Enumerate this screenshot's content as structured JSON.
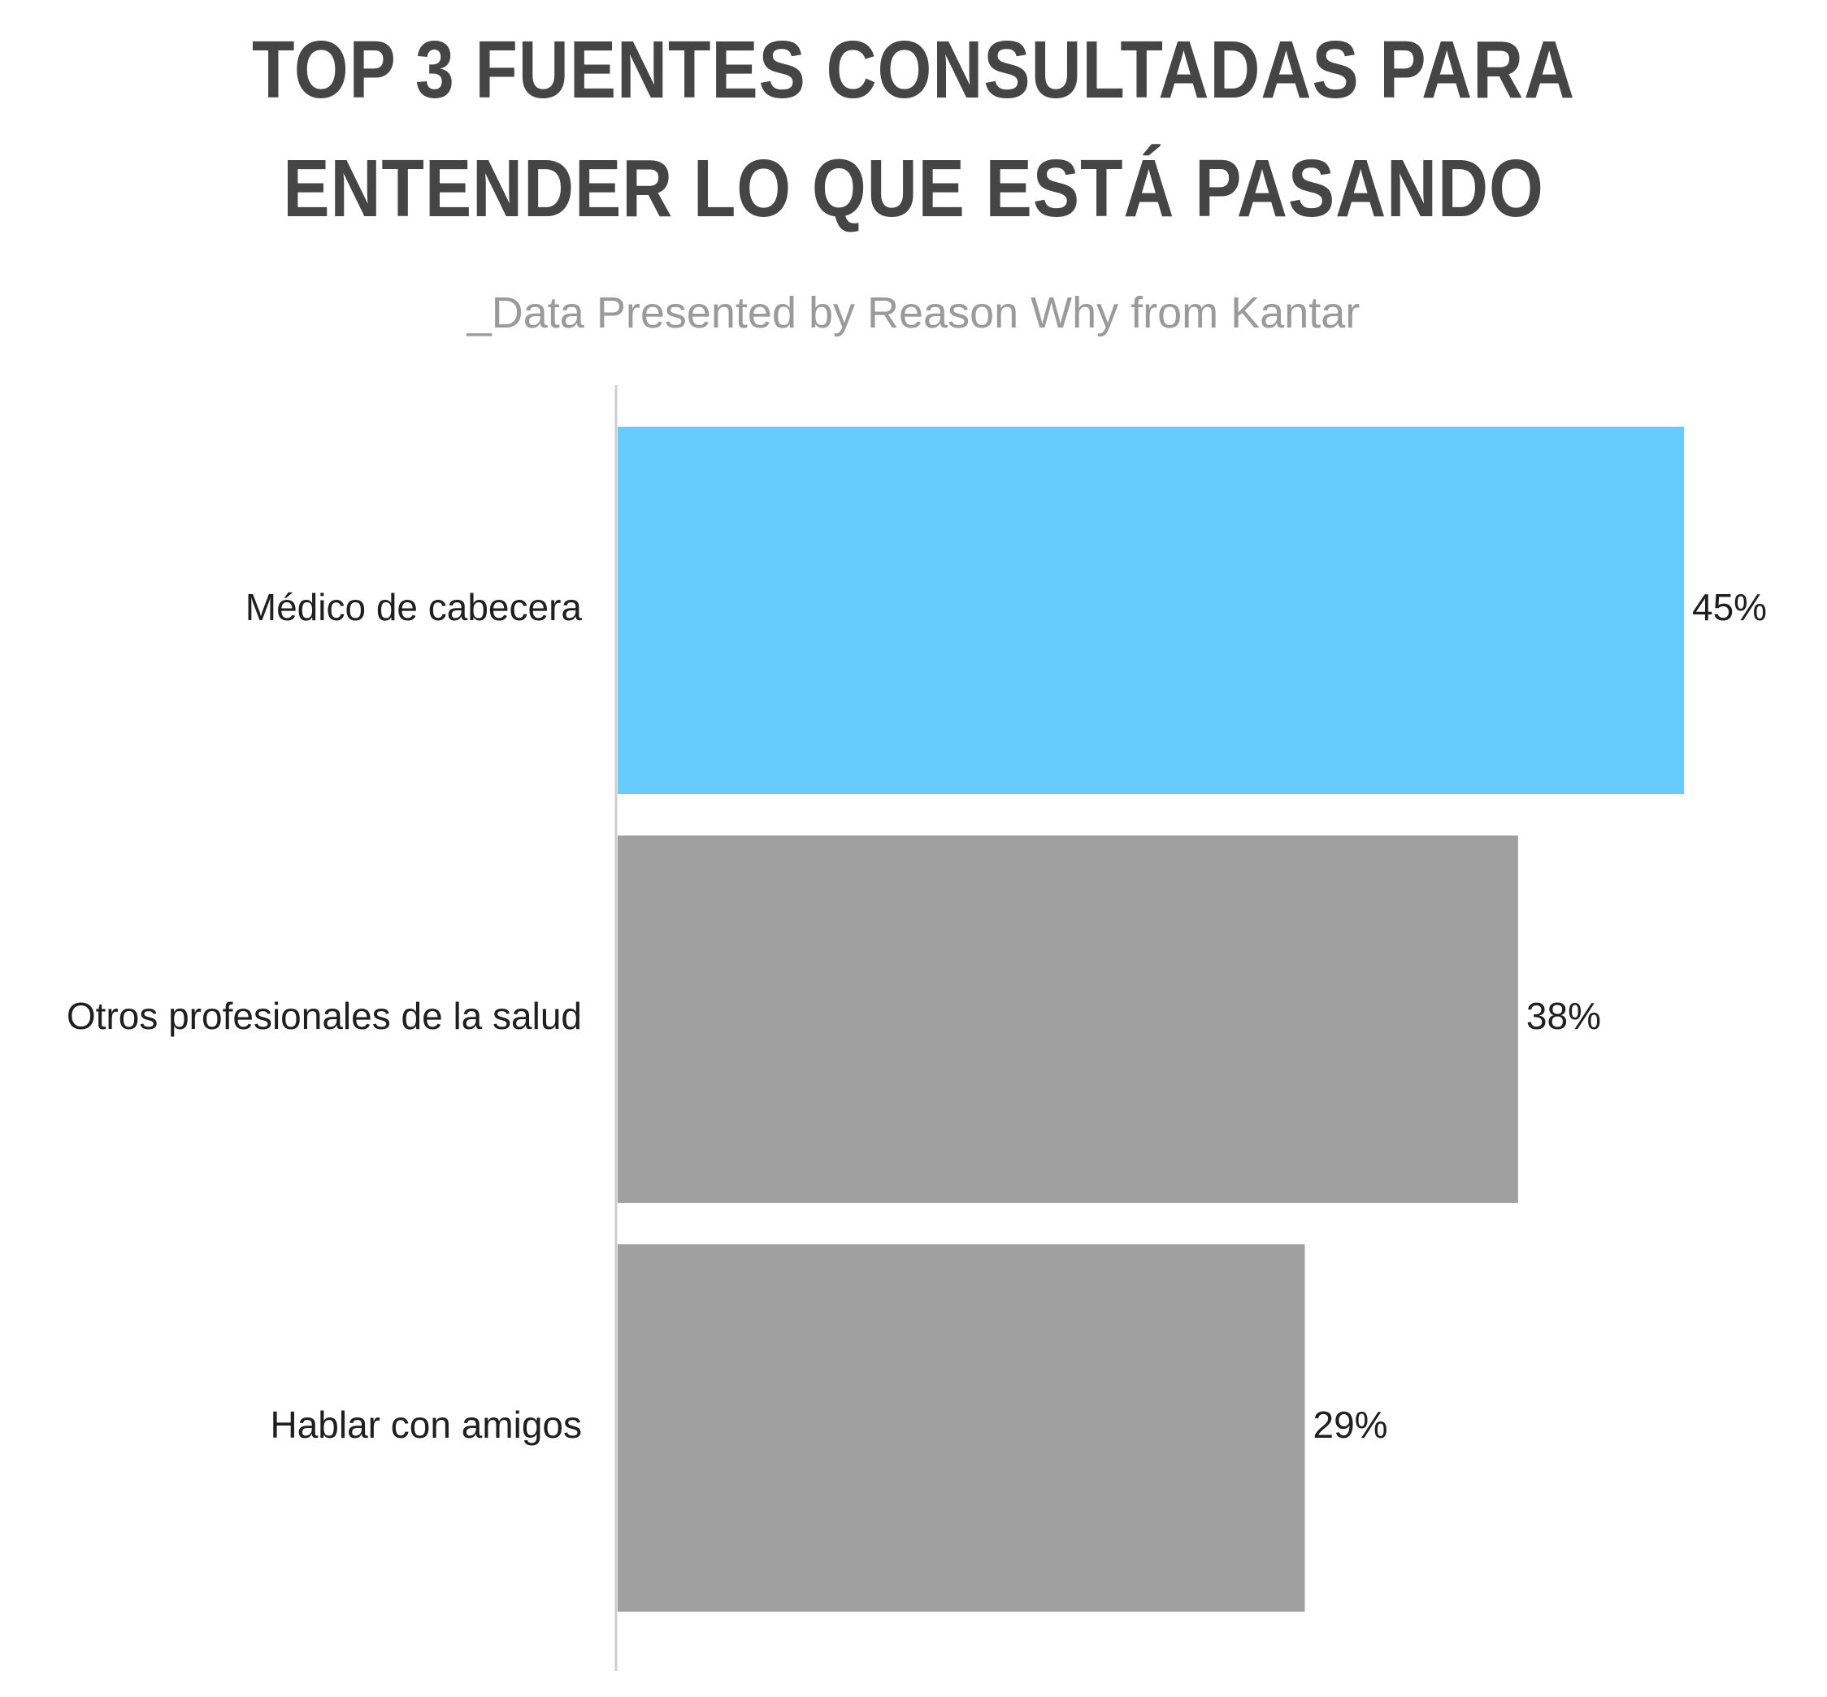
{
  "header": {
    "title_line1": "TOP 3 FUENTES CONSULTADAS PARA",
    "title_line2": "ENTENDER LO QUE ESTÁ PASANDO",
    "subtitle": "_Data Presented by Reason Why from Kantar"
  },
  "chart_data": {
    "type": "bar",
    "orientation": "horizontal",
    "title": "TOP 3 FUENTES CONSULTADAS PARA ENTENDER LO QUE ESTÁ PASANDO",
    "subtitle": "_Data Presented by Reason Why from Kantar",
    "categories": [
      "Médico de cabecera",
      "Otros profesionales de la salud",
      "Hablar con amigos"
    ],
    "values": [
      45,
      38,
      29
    ],
    "value_labels": [
      "45%",
      "38%",
      "29%"
    ],
    "xlim": [
      0,
      45
    ],
    "grid": false,
    "legend": "none",
    "colors": [
      "#66ccff",
      "#a0a0a0",
      "#a0a0a0"
    ],
    "axis_color": "#cfcfcf"
  }
}
